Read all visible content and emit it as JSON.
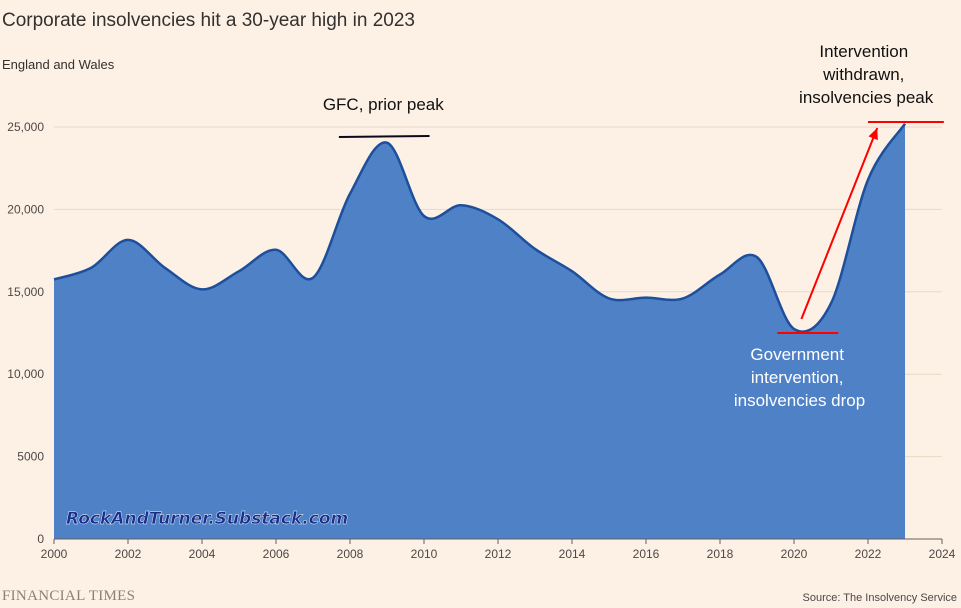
{
  "chart_data": {
    "type": "area",
    "title": "Corporate insolvencies hit a 30-year high in 2023",
    "subtitle": "England and Wales",
    "x": [
      2000,
      2001,
      2002,
      2003,
      2004,
      2005,
      2006,
      2007,
      2008,
      2009,
      2010,
      2011,
      2012,
      2013,
      2014,
      2015,
      2016,
      2017,
      2018,
      2019,
      2020,
      2021,
      2022,
      2023
    ],
    "series": [
      {
        "values": [
          15750,
          16450,
          18150,
          16450,
          15150,
          16250,
          17550,
          15850,
          20950,
          24050,
          19600,
          20250,
          19400,
          17600,
          16250,
          14600,
          14650,
          14600,
          16050,
          17100,
          12750,
          14300,
          21800,
          25200
        ]
      }
    ],
    "xlim": [
      2000,
      2024
    ],
    "ylim": [
      0,
      25000
    ],
    "x_ticks": [
      2000,
      2002,
      2004,
      2006,
      2008,
      2010,
      2012,
      2014,
      2016,
      2018,
      2020,
      2022,
      2024
    ],
    "y_ticks": [
      {
        "value": 0,
        "label": "0"
      },
      {
        "value": 5000,
        "label": "5000"
      },
      {
        "value": 10000,
        "label": "10,000"
      },
      {
        "value": 15000,
        "label": "15,000"
      },
      {
        "value": 20000,
        "label": "20,000"
      },
      {
        "value": 25000,
        "label": "25,000"
      }
    ],
    "grid": true,
    "annotations": [
      {
        "text": "GFC, prior peak"
      },
      {
        "text_lines": [
          "Government",
          "intervention,",
          "insolvencies drop"
        ]
      },
      {
        "text_lines": [
          "Intervention",
          "withdrawn,",
          "insolvencies peak"
        ]
      }
    ],
    "watermark": "RockAndTurner.Substack.com",
    "source": "Source: The Insolvency Service",
    "publisher": "FINANCIAL TIMES"
  },
  "colors": {
    "background": "#fdf1e6",
    "area_fill": "#4f81c7",
    "area_line": "#1d4f9c",
    "grid": "#ead8c6",
    "red_marker": "#ff0000",
    "black_marker": "#0a0a1a",
    "watermark": "#1a2f8a"
  }
}
